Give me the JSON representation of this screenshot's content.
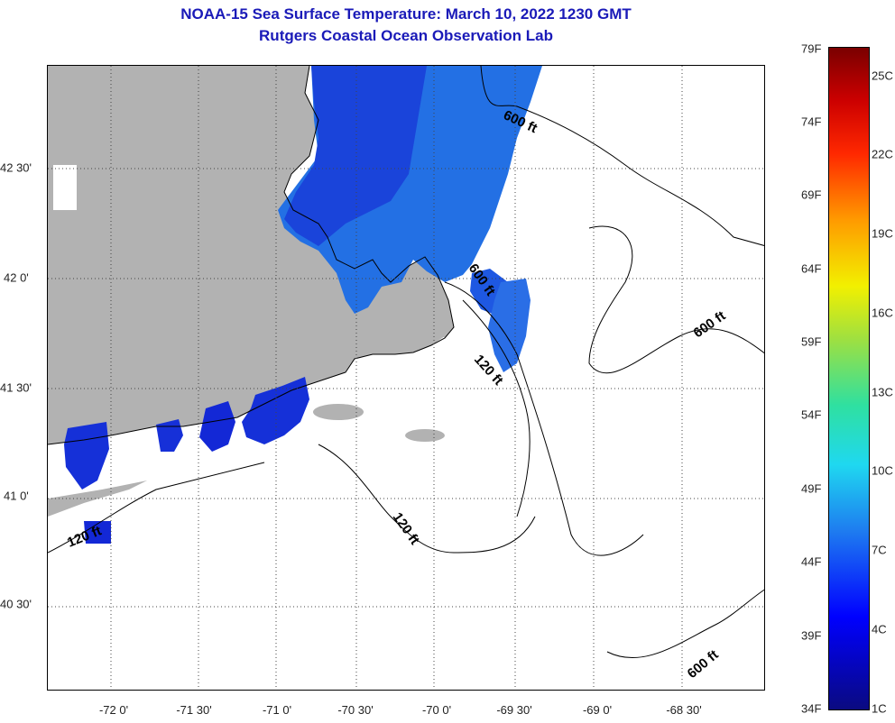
{
  "title": {
    "line1": "NOAA-15 Sea Surface Temperature:  March 10, 2022 1230 GMT",
    "line2": "Rutgers Coastal Ocean Observation Lab"
  },
  "map": {
    "lat_labels": [
      "42 30'",
      "42 0'",
      "41 30'",
      "41 0'",
      "40 30'"
    ],
    "lon_labels": [
      "-72 0'",
      "-71 30'",
      "-71 0'",
      "-70 30'",
      "-70 0'",
      "-69 30'",
      "-69 0'",
      "-68 30'"
    ],
    "contour_labels": [
      "600 ft",
      "600 ft",
      "600 ft",
      "600 ft",
      "120 ft",
      "120 ft",
      "120 ft"
    ],
    "colors": {
      "land": "#b2b2b2",
      "sst_warm": "#1e6ee6",
      "sst_cold": "#1414cc",
      "coast": "#000000",
      "grid": "#444444"
    }
  },
  "colorbar": {
    "fahrenheit": [
      "79F",
      "74F",
      "69F",
      "64F",
      "59F",
      "54F",
      "49F",
      "44F",
      "39F",
      "34F"
    ],
    "celsius": [
      "25C",
      "22C",
      "19C",
      "16C",
      "13C",
      "10C",
      "7C",
      "4C",
      "1C"
    ]
  }
}
